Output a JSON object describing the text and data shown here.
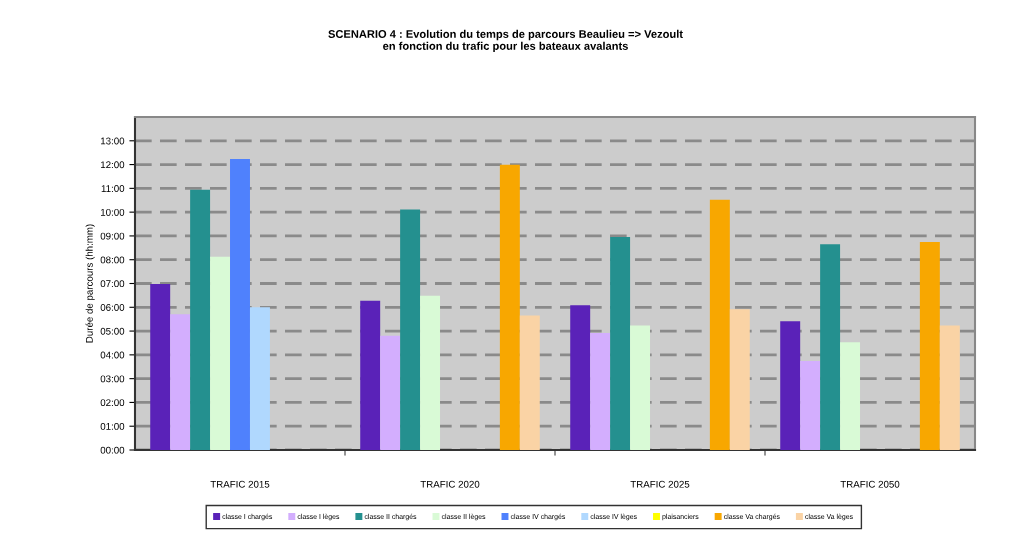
{
  "chart_data": {
    "type": "bar",
    "title": "SCENARIO 4 : Evolution du temps de parcours Beaulieu => Vezoult\nen fonction du trafic pour les bateaux avalants",
    "ylabel": "Durée de parcours (hh:mm)",
    "categories": [
      "TRAFIC 2015",
      "TRAFIC 2020",
      "TRAFIC 2025",
      "TRAFIC 2050"
    ],
    "series": [
      {
        "name": "classe I chargés",
        "color": "#5a22b8",
        "values": [
          6.98,
          6.27,
          6.09,
          5.41
        ]
      },
      {
        "name": "classe I lèges",
        "color": "#d3aefe",
        "values": [
          5.71,
          4.8,
          4.92,
          3.74
        ]
      },
      {
        "name": "classe II chargés",
        "color": "#24908f",
        "values": [
          10.94,
          10.11,
          8.96,
          8.65
        ]
      },
      {
        "name": "classe II lèges",
        "color": "#d9fad6",
        "values": [
          8.12,
          6.48,
          5.23,
          4.53
        ]
      },
      {
        "name": "classe IV chargés",
        "color": "#4f81fd",
        "values": [
          12.23,
          null,
          null,
          null
        ]
      },
      {
        "name": "classe IV lèges",
        "color": "#b0d8fe",
        "values": [
          6.0,
          null,
          null,
          null
        ]
      },
      {
        "name": "plaisanciers",
        "color": "#ffff00",
        "values": [
          null,
          null,
          null,
          null
        ]
      },
      {
        "name": "classe Va chargés",
        "color": "#f8a700",
        "values": [
          null,
          11.99,
          10.52,
          8.75
        ]
      },
      {
        "name": "classe Va lèges",
        "color": "#fad3a5",
        "values": [
          null,
          5.65,
          5.92,
          5.23
        ]
      }
    ],
    "ylim": [
      0,
      14
    ],
    "yticks": [
      {
        "value": 0,
        "label": "00:00"
      },
      {
        "value": 1,
        "label": "01:00"
      },
      {
        "value": 2,
        "label": "02:00"
      },
      {
        "value": 3,
        "label": "03:00"
      },
      {
        "value": 4,
        "label": "04:00"
      },
      {
        "value": 5,
        "label": "05:00"
      },
      {
        "value": 6,
        "label": "06:00"
      },
      {
        "value": 7,
        "label": "07:00"
      },
      {
        "value": 8,
        "label": "08:00"
      },
      {
        "value": 9,
        "label": "09:00"
      },
      {
        "value": 10,
        "label": "10:00"
      },
      {
        "value": 11,
        "label": "11:00"
      },
      {
        "value": 12,
        "label": "12:00"
      },
      {
        "value": 13,
        "label": "13:00"
      }
    ],
    "grid": "y",
    "legend": "bottom"
  }
}
